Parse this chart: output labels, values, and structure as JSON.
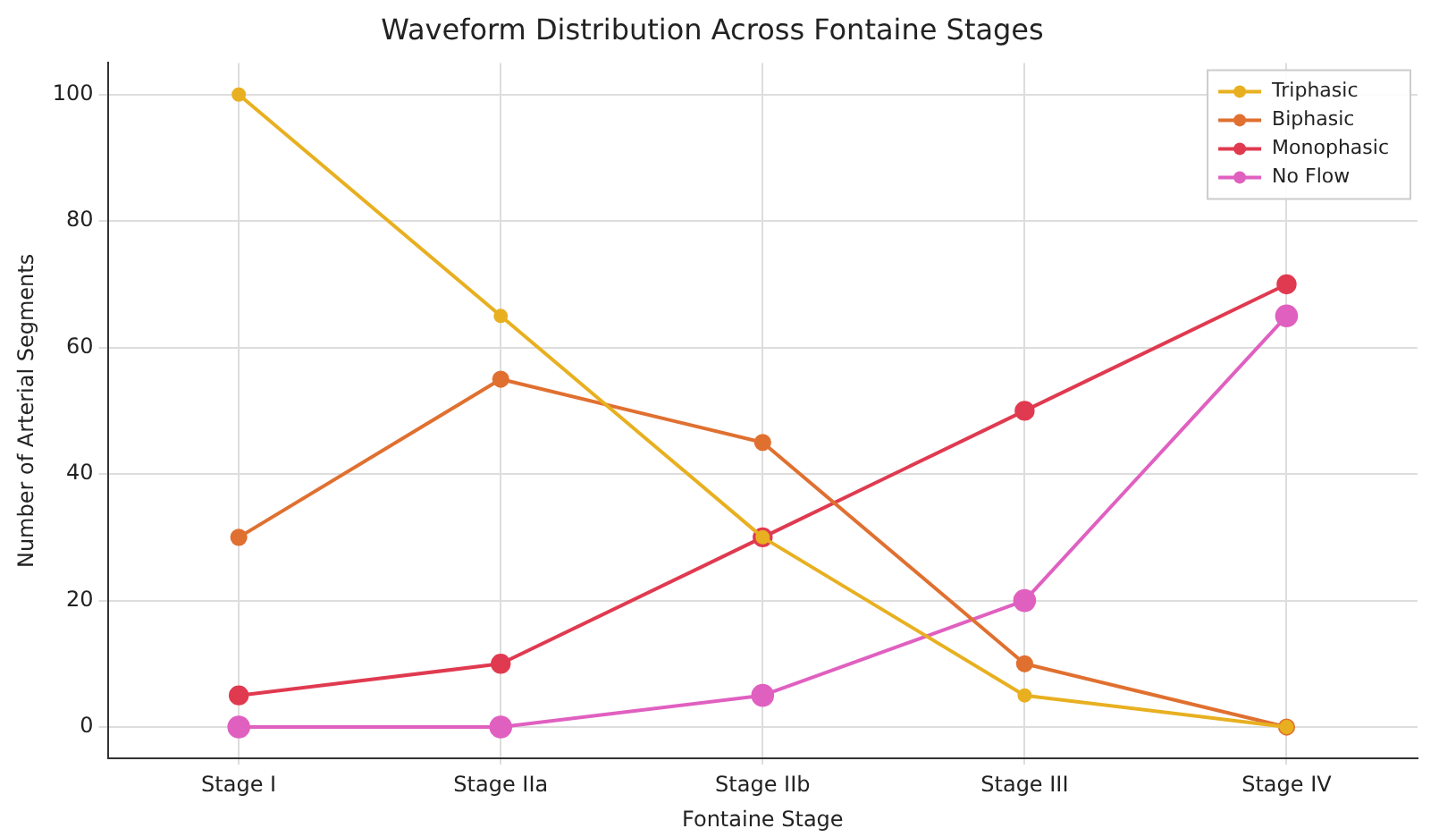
{
  "chart_data": {
    "type": "line",
    "title": "Waveform Distribution Across Fontaine Stages",
    "xlabel": "Fontaine Stage",
    "ylabel": "Number of Arterial Segments",
    "categories": [
      "Stage I",
      "Stage IIa",
      "Stage IIb",
      "Stage III",
      "Stage IV"
    ],
    "series": [
      {
        "name": "Triphasic",
        "color": "#e8b020",
        "values": [
          100,
          65,
          30,
          5,
          0
        ]
      },
      {
        "name": "Biphasic",
        "color": "#e07030",
        "values": [
          30,
          55,
          45,
          10,
          0
        ]
      },
      {
        "name": "Monophasic",
        "color": "#e03a50",
        "values": [
          5,
          10,
          30,
          50,
          70
        ]
      },
      {
        "name": "No Flow",
        "color": "#e060c0",
        "values": [
          0,
          0,
          5,
          20,
          65
        ]
      }
    ],
    "ylim": [
      -5,
      105
    ],
    "yticks": [
      0,
      20,
      40,
      60,
      80,
      100
    ],
    "grid": true,
    "legend": "top right",
    "marker": "circle",
    "line_style": "solid"
  }
}
